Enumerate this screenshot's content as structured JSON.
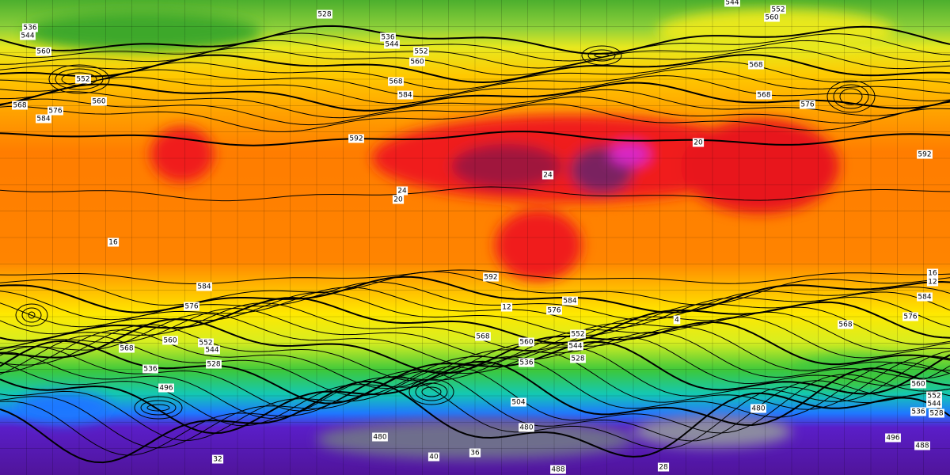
{
  "map": {
    "contour_labels": [
      528,
      544,
      552,
      560,
      536,
      544,
      560,
      552,
      560,
      568,
      576,
      584,
      536,
      544,
      552,
      560,
      568,
      584,
      592,
      568,
      568,
      576,
      592,
      584,
      576,
      568,
      560,
      552,
      544,
      536,
      528,
      496,
      592,
      584,
      576,
      568,
      560,
      552,
      544,
      536,
      528,
      504,
      480,
      480,
      480,
      568,
      584,
      576,
      560,
      552,
      544,
      536,
      528,
      496,
      488,
      488
    ],
    "temperature_labels": [
      16,
      24,
      20,
      24,
      20,
      4,
      16,
      12,
      12,
      28,
      32,
      36,
      40
    ]
  }
}
